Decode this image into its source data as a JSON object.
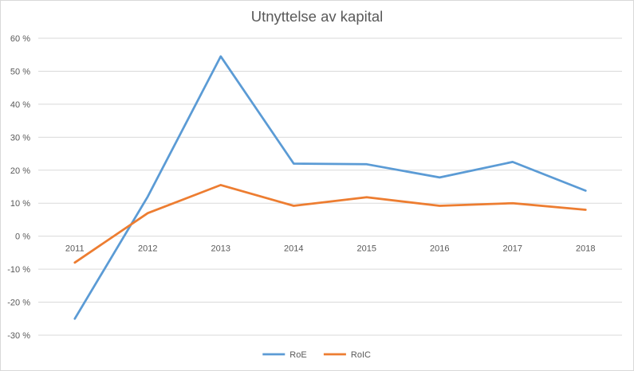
{
  "chart_data": {
    "type": "line",
    "title": "Utnyttelse av kapital",
    "xlabel": "",
    "ylabel": "",
    "categories": [
      "2011",
      "2012",
      "2013",
      "2014",
      "2015",
      "2016",
      "2017",
      "2018"
    ],
    "series": [
      {
        "name": "RoE",
        "color": "#5b9bd5",
        "values": [
          -25,
          12,
          54.5,
          22,
          21.8,
          17.8,
          22.5,
          13.8
        ]
      },
      {
        "name": "RoIC",
        "color": "#ed7d31",
        "values": [
          -8,
          7,
          15.5,
          9.2,
          11.8,
          9.2,
          10,
          8
        ]
      }
    ],
    "ylim": [
      -30,
      60
    ],
    "ytick_step": 10,
    "ytick_labels": [
      "-30 %",
      "-20 %",
      "-10 %",
      "0 %",
      "10 %",
      "20 %",
      "30 %",
      "40 %",
      "50 %",
      "60 %"
    ],
    "grid": true,
    "gridline_color": "#d9d9d9",
    "legend_position": "bottom"
  }
}
